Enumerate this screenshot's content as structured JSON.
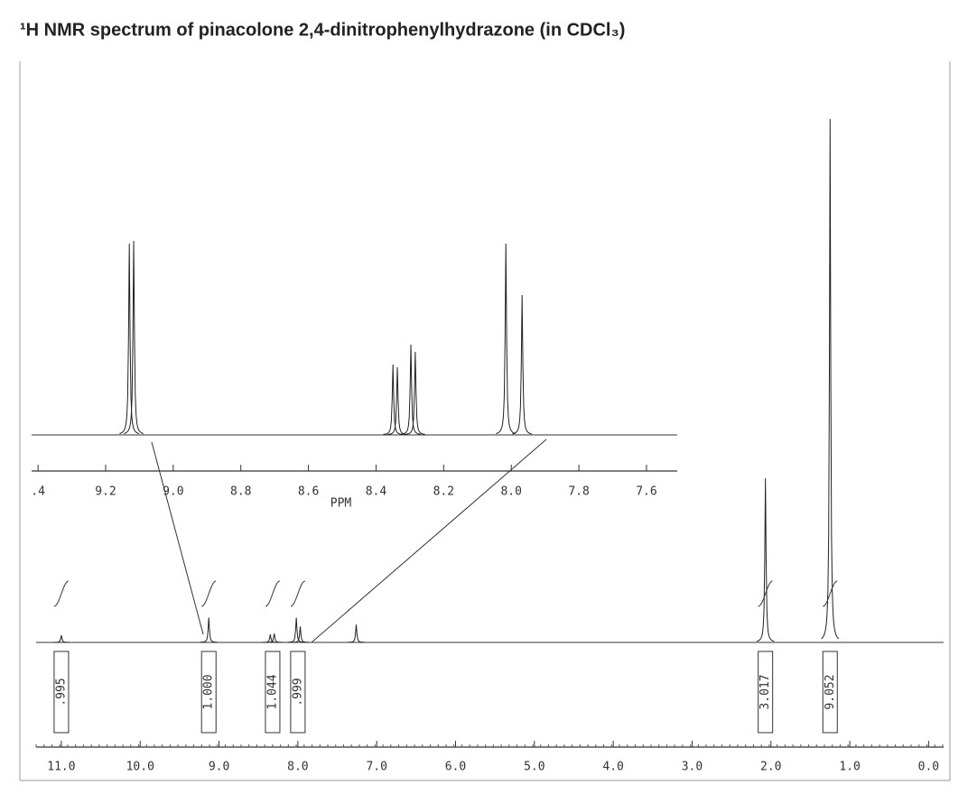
{
  "chart_data": [
    {
      "type": "spectrum",
      "title": "¹H NMR spectrum of pinacolone 2,4-dinitrophenylhydrazone (in CDCl₃)",
      "xlim": [
        11.32,
        -0.19
      ],
      "ylim": [
        0,
        600
      ],
      "xticks": [
        {
          "value": 11,
          "label": "11.0"
        },
        {
          "value": 10,
          "label": "10.0"
        },
        {
          "value": 9,
          "label": "9.0"
        },
        {
          "value": 8,
          "label": "8.0"
        },
        {
          "value": 7,
          "label": "7.0"
        },
        {
          "value": 6,
          "label": "6.0"
        },
        {
          "value": 5,
          "label": "5.0"
        },
        {
          "value": 4,
          "label": "4.0"
        },
        {
          "value": 3,
          "label": "3.0"
        },
        {
          "value": 2,
          "label": "2.0"
        },
        {
          "value": 1,
          "label": "1.0"
        },
        {
          "value": 0,
          "label": "0.0"
        }
      ],
      "peaks": {
        "x": [
          11.0,
          9.13,
          8.35,
          8.3,
          8.02,
          7.97,
          7.26,
          2.07,
          1.25
        ],
        "values": [
          8,
          28,
          9,
          10,
          28,
          18,
          20,
          185,
          590
        ]
      },
      "integrals": {
        "x": [
          11.0,
          9.13,
          8.32,
          8.0,
          2.07,
          1.25
        ],
        "values": [
          0.995,
          1.0,
          1.044,
          0.999,
          3.017,
          9.052
        ],
        "value_labels": [
          ".995",
          "1.000",
          "1.044",
          ".999",
          "3.017",
          "9.052"
        ]
      }
    },
    {
      "type": "spectrum",
      "xlabel": "PPM",
      "xlim": [
        9.419,
        7.509
      ],
      "ylim": [
        0,
        220
      ],
      "xticks": [
        {
          "value": 9.4,
          "label": ".4"
        },
        9.2,
        {
          "value": 9.0,
          "label": "9.0"
        },
        8.8,
        8.6,
        8.4,
        8.2,
        {
          "value": 8.0,
          "label": "8.0"
        },
        7.8,
        7.6
      ],
      "peaks": {
        "x": [
          9.13,
          9.117,
          8.35,
          8.337,
          8.297,
          8.284,
          8.016,
          7.968
        ],
        "values": [
          212,
          215,
          78,
          75,
          100,
          92,
          212,
          155
        ]
      }
    }
  ]
}
